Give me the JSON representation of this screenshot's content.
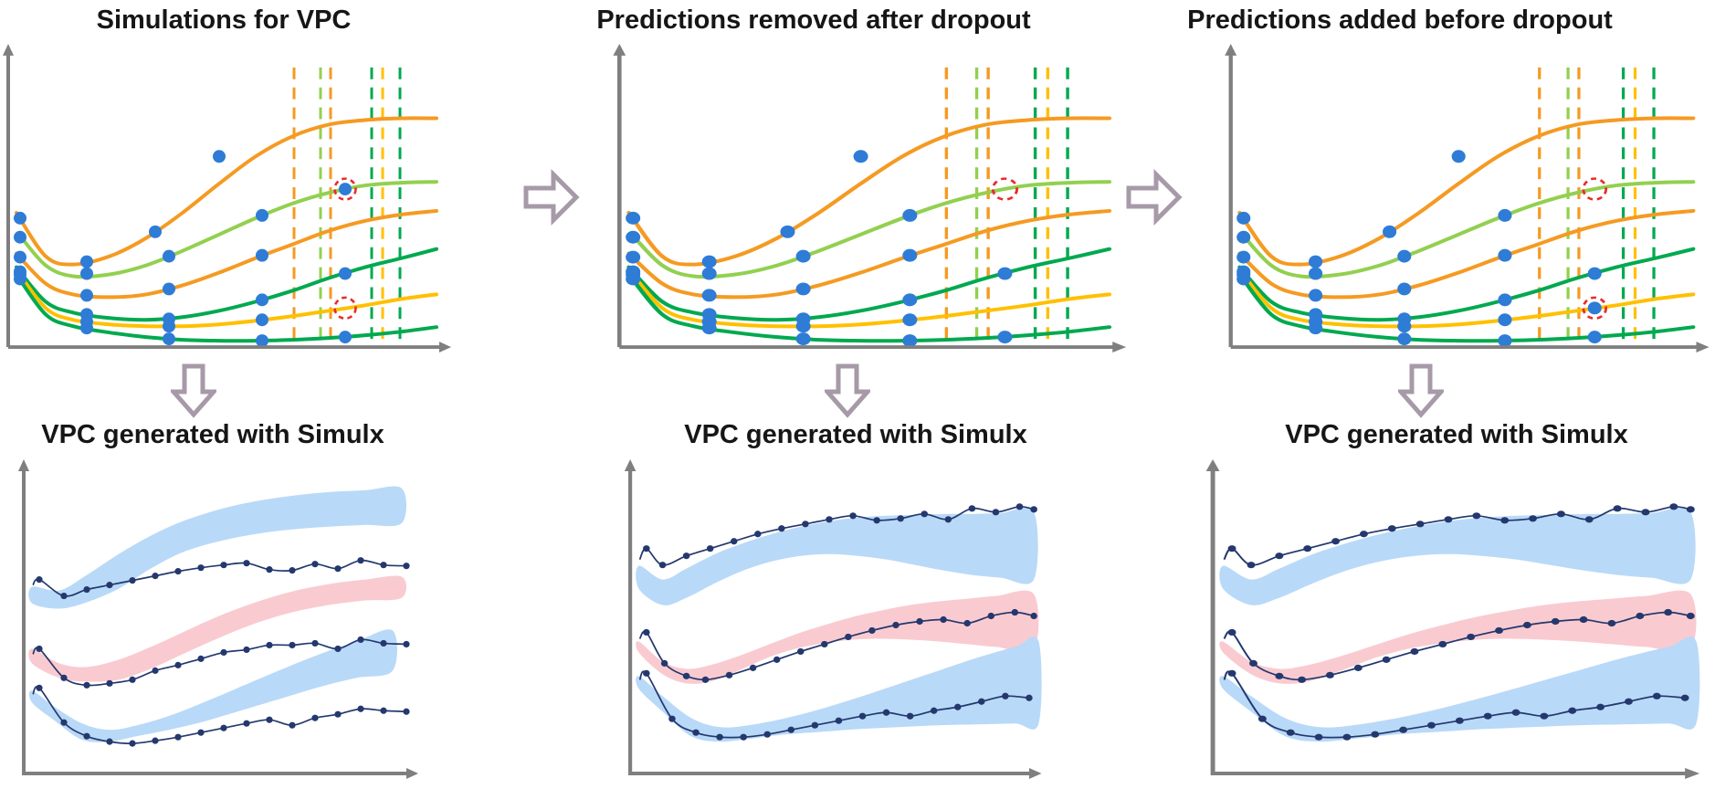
{
  "top_panels": [
    {
      "title": "Simulations for VPC",
      "annotations": [
        "circled-point-present-on-light-green-curve",
        "empty-circle-on-yellow-curve"
      ]
    },
    {
      "title": "Predictions removed after dropout",
      "annotations": [
        "empty-circle-on-light-green-curve"
      ]
    },
    {
      "title": "Predictions added before dropout",
      "annotations": [
        "empty-circle-on-light-green-curve",
        "circled-point-added-on-yellow-curve"
      ]
    }
  ],
  "bottom_panels": [
    {
      "title": "VPC generated with Simulx"
    },
    {
      "title": "VPC generated with Simulx"
    },
    {
      "title": "VPC generated with Simulx"
    }
  ],
  "icons": {
    "right_arrow": "block-arrow-right",
    "down_arrow": "block-arrow-down"
  },
  "colors": {
    "orange_curve": "#F59A22",
    "light_green_curve": "#92D050",
    "green_curve": "#00A94F",
    "yellow_curve": "#FFC000",
    "observation_dot": "#2E7CD6",
    "highlight_circle_red": "#E92B2B",
    "axis_gray": "#7F7F7F",
    "arrow_outline": "#A79AA8",
    "vpc_band_blue": "#B9D9F8",
    "vpc_band_pink": "#F9CBD0",
    "empirical_line_navy": "#24386E"
  }
}
